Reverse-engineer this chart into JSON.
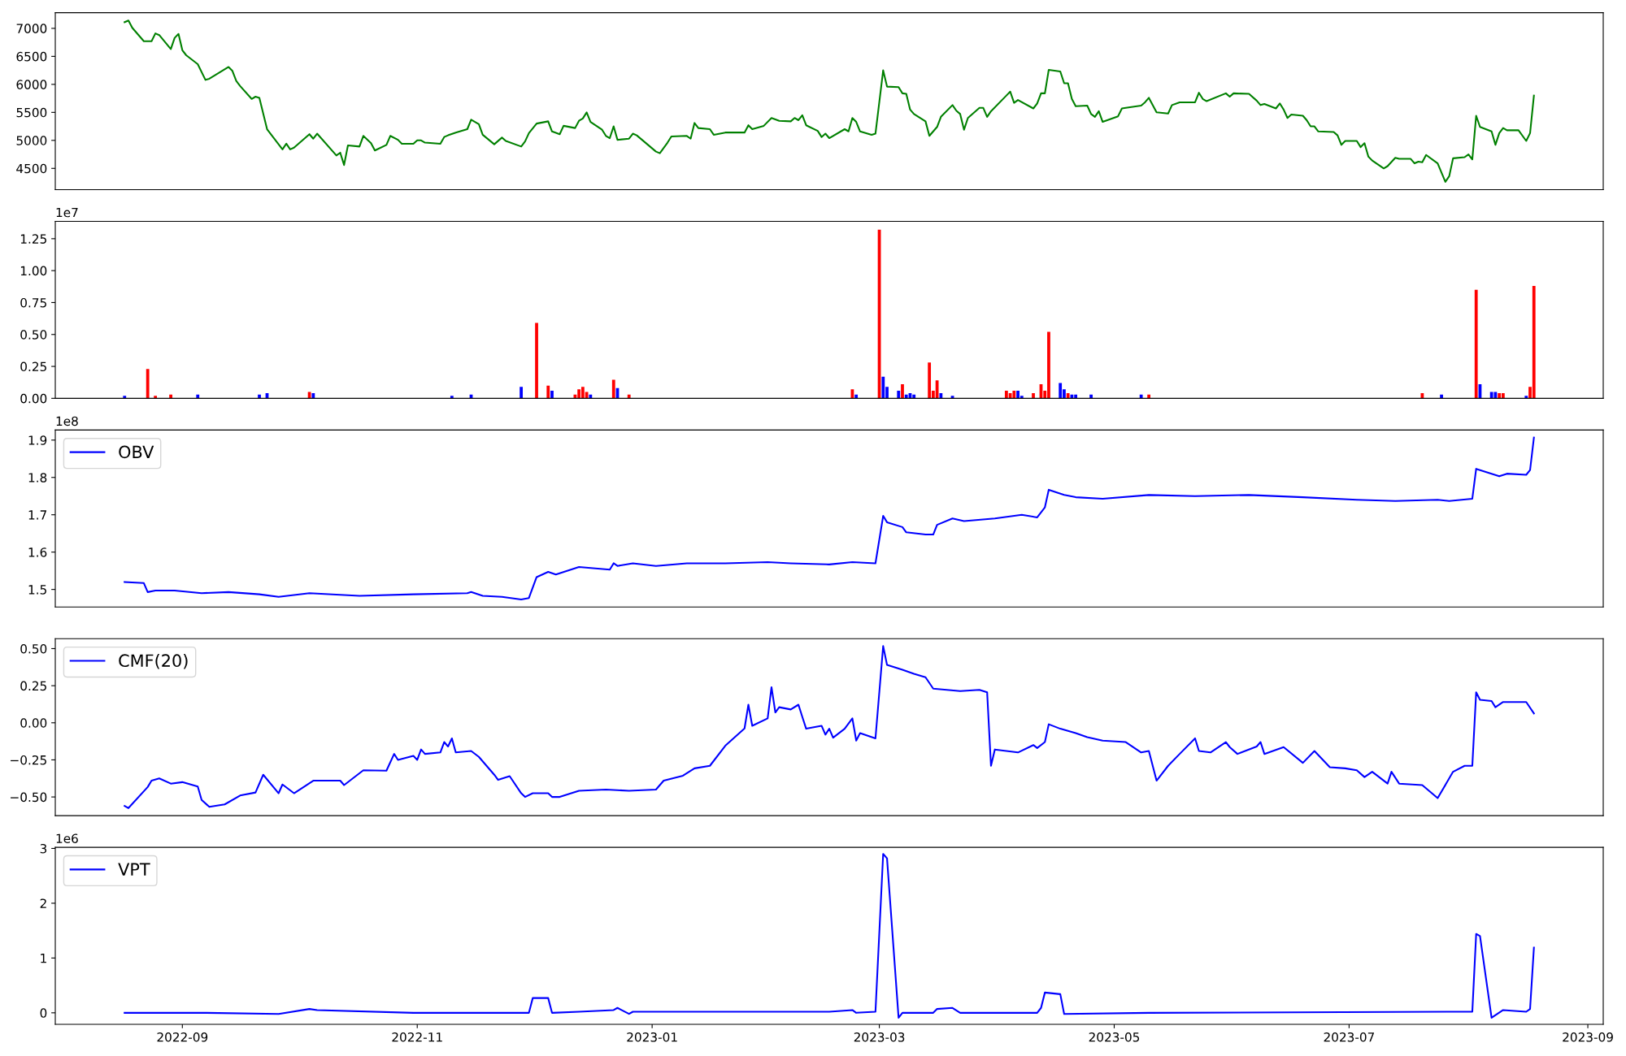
{
  "chart_data": [
    {
      "type": "line",
      "xlim": [
        "2022-07-30",
        "2023-09-05"
      ],
      "ylim": [
        4120,
        7280
      ],
      "yticks": [
        4500,
        5000,
        5500,
        6000,
        6500,
        7000
      ],
      "tick_labels": "y",
      "grid": false,
      "legend": false,
      "series": [
        {
          "color": "#008000",
          "x": [
            "2022-08-17",
            "2022-08-18",
            "2022-08-19",
            "2022-08-22",
            "2022-08-24",
            "2022-08-25",
            "2022-08-26",
            "2022-08-29",
            "2022-08-30",
            "2022-08-31",
            "2022-09-01",
            "2022-09-02",
            "2022-09-05",
            "2022-09-07",
            "2022-09-08",
            "2022-09-13",
            "2022-09-14",
            "2022-09-15",
            "2022-09-16",
            "2022-09-19",
            "2022-09-20",
            "2022-09-21",
            "2022-09-23",
            "2022-09-27",
            "2022-09-28",
            "2022-09-29",
            "2022-09-30",
            "2022-10-04",
            "2022-10-05",
            "2022-10-06",
            "2022-10-11",
            "2022-10-12",
            "2022-10-13",
            "2022-10-14",
            "2022-10-17",
            "2022-10-18",
            "2022-10-20",
            "2022-10-21",
            "2022-10-24",
            "2022-10-25",
            "2022-10-27",
            "2022-10-28",
            "2022-10-31",
            "2022-11-01",
            "2022-11-02",
            "2022-11-03",
            "2022-11-07",
            "2022-11-08",
            "2022-11-09",
            "2022-11-11",
            "2022-11-14",
            "2022-11-15",
            "2022-11-17",
            "2022-11-18",
            "2022-11-21",
            "2022-11-23",
            "2022-11-24",
            "2022-11-28",
            "2022-11-29",
            "2022-11-30",
            "2022-12-02",
            "2022-12-05",
            "2022-12-06",
            "2022-12-08",
            "2022-12-09",
            "2022-12-12",
            "2022-12-13",
            "2022-12-14",
            "2022-12-15",
            "2022-12-16",
            "2022-12-19",
            "2022-12-20",
            "2022-12-21",
            "2022-12-22",
            "2022-12-23",
            "2022-12-26",
            "2022-12-27",
            "2022-12-28",
            "2023-01-02",
            "2023-01-03",
            "2023-01-05",
            "2023-01-06",
            "2023-01-10",
            "2023-01-11",
            "2023-01-12",
            "2023-01-13",
            "2023-01-16",
            "2023-01-17",
            "2023-01-20",
            "2023-01-25",
            "2023-01-26",
            "2023-01-27",
            "2023-01-30",
            "2023-02-01",
            "2023-02-03",
            "2023-02-06",
            "2023-02-07",
            "2023-02-08",
            "2023-02-09",
            "2023-02-10",
            "2023-02-13",
            "2023-02-14",
            "2023-02-15",
            "2023-02-16",
            "2023-02-20",
            "2023-02-21",
            "2023-02-22",
            "2023-02-23",
            "2023-02-24",
            "2023-02-27",
            "2023-02-28",
            "2023-03-02",
            "2023-03-03",
            "2023-03-06",
            "2023-03-07",
            "2023-03-08",
            "2023-03-09",
            "2023-03-10",
            "2023-03-13",
            "2023-03-14",
            "2023-03-16",
            "2023-03-17",
            "2023-03-20",
            "2023-03-21",
            "2023-03-22",
            "2023-03-23",
            "2023-03-24",
            "2023-03-27",
            "2023-03-28",
            "2023-03-29",
            "2023-03-30",
            "2023-04-03",
            "2023-04-04",
            "2023-04-05",
            "2023-04-06",
            "2023-04-10",
            "2023-04-11",
            "2023-04-12",
            "2023-04-13",
            "2023-04-14",
            "2023-04-17",
            "2023-04-18",
            "2023-04-19",
            "2023-04-20",
            "2023-04-21",
            "2023-04-24",
            "2023-04-25",
            "2023-04-26",
            "2023-04-27",
            "2023-04-28",
            "2023-05-02",
            "2023-05-03",
            "2023-05-04",
            "2023-05-08",
            "2023-05-09",
            "2023-05-10",
            "2023-05-12",
            "2023-05-15",
            "2023-05-16",
            "2023-05-18",
            "2023-05-22",
            "2023-05-23",
            "2023-05-24",
            "2023-05-25",
            "2023-05-30",
            "2023-05-31",
            "2023-06-01",
            "2023-06-05",
            "2023-06-07",
            "2023-06-08",
            "2023-06-09",
            "2023-06-12",
            "2023-06-13",
            "2023-06-14",
            "2023-06-15",
            "2023-06-16",
            "2023-06-19",
            "2023-06-20",
            "2023-06-21",
            "2023-06-22",
            "2023-06-23",
            "2023-06-27",
            "2023-06-28",
            "2023-06-29",
            "2023-06-30",
            "2023-07-03",
            "2023-07-04",
            "2023-07-05",
            "2023-07-06",
            "2023-07-07",
            "2023-07-10",
            "2023-07-11",
            "2023-07-13",
            "2023-07-14",
            "2023-07-17",
            "2023-07-18",
            "2023-07-19",
            "2023-07-20",
            "2023-07-21",
            "2023-07-24",
            "2023-07-26",
            "2023-07-27",
            "2023-07-28",
            "2023-07-31",
            "2023-08-01",
            "2023-08-02",
            "2023-08-03",
            "2023-08-04",
            "2023-08-07",
            "2023-08-08",
            "2023-08-09",
            "2023-08-10",
            "2023-08-11",
            "2023-08-14",
            "2023-08-16",
            "2023-08-17",
            "2023-08-18"
          ],
          "values": [
            7110,
            7140,
            7010,
            6770,
            6770,
            6910,
            6880,
            6630,
            6830,
            6900,
            6610,
            6520,
            6360,
            6080,
            6100,
            6310,
            6240,
            6060,
            5970,
            5740,
            5780,
            5760,
            5200,
            4840,
            4940,
            4840,
            4870,
            5110,
            5030,
            5120,
            4730,
            4780,
            4560,
            4910,
            4890,
            5080,
            4950,
            4820,
            4920,
            5080,
            5010,
            4940,
            4940,
            5000,
            5000,
            4960,
            4940,
            5060,
            5090,
            5140,
            5200,
            5370,
            5290,
            5100,
            4930,
            5050,
            4990,
            4890,
            4980,
            5130,
            5300,
            5340,
            5160,
            5110,
            5260,
            5220,
            5350,
            5390,
            5500,
            5330,
            5190,
            5080,
            5040,
            5250,
            5010,
            5030,
            5120,
            5090,
            4800,
            4770,
            4960,
            5070,
            5080,
            5030,
            5310,
            5220,
            5200,
            5100,
            5140,
            5140,
            5270,
            5200,
            5260,
            5400,
            5350,
            5340,
            5400,
            5360,
            5450,
            5270,
            5170,
            5060,
            5120,
            5040,
            5200,
            5160,
            5400,
            5330,
            5160,
            5100,
            5120,
            6250,
            5960,
            5950,
            5840,
            5830,
            5550,
            5470,
            5340,
            5080,
            5240,
            5420,
            5630,
            5530,
            5470,
            5190,
            5400,
            5580,
            5580,
            5420,
            5520,
            5800,
            5870,
            5670,
            5720,
            5570,
            5660,
            5840,
            5840,
            6260,
            6230,
            6020,
            6020,
            5740,
            5610,
            5620,
            5470,
            5420,
            5520,
            5330,
            5430,
            5570,
            5580,
            5620,
            5680,
            5760,
            5500,
            5480,
            5630,
            5680,
            5680,
            5850,
            5740,
            5700,
            5840,
            5780,
            5840,
            5830,
            5710,
            5630,
            5650,
            5570,
            5660,
            5550,
            5400,
            5460,
            5440,
            5360,
            5250,
            5250,
            5160,
            5150,
            5090,
            4920,
            4990,
            4990,
            4880,
            4950,
            4710,
            4640,
            4500,
            4540,
            4690,
            4670,
            4670,
            4590,
            4620,
            4610,
            4740,
            4590,
            4260,
            4360,
            4680,
            4700,
            4750,
            4660,
            5440,
            5240,
            5160,
            4920,
            5130,
            5220,
            5180,
            5180,
            4990,
            5130,
            5800
          ]
        }
      ]
    },
    {
      "type": "bar",
      "xlim": [
        "2022-07-30",
        "2023-09-05"
      ],
      "ylim": [
        0,
        1.386
      ],
      "yticks": [
        {
          "value": 0,
          "label": "0.00"
        },
        0.25,
        {
          "value": 0.5,
          "label": "0.50"
        },
        {
          "value": 0.75,
          "label": "0.75"
        },
        {
          "value": 1.0,
          "label": "1.00"
        },
        1.25
      ],
      "tick_labels": "y",
      "grid": false,
      "legend": false,
      "annotations": [
        "1e7"
      ],
      "x": [
        "2022-08-17",
        "2022-08-23",
        "2022-08-25",
        "2022-08-29",
        "2022-09-05",
        "2022-09-21",
        "2022-09-23",
        "2022-10-04",
        "2022-10-05",
        "2022-11-10",
        "2022-11-15",
        "2022-11-28",
        "2022-12-02",
        "2022-12-05",
        "2022-12-06",
        "2022-12-12",
        "2022-12-13",
        "2022-12-14",
        "2022-12-15",
        "2022-12-16",
        "2022-12-22",
        "2022-12-23",
        "2022-12-26",
        "2023-02-22",
        "2023-02-23",
        "2023-03-01",
        "2023-03-02",
        "2023-03-03",
        "2023-03-06",
        "2023-03-07",
        "2023-03-08",
        "2023-03-09",
        "2023-03-10",
        "2023-03-14",
        "2023-03-15",
        "2023-03-16",
        "2023-03-17",
        "2023-03-20",
        "2023-04-03",
        "2023-04-04",
        "2023-04-05",
        "2023-04-06",
        "2023-04-07",
        "2023-04-10",
        "2023-04-12",
        "2023-04-13",
        "2023-04-14",
        "2023-04-17",
        "2023-04-18",
        "2023-04-19",
        "2023-04-20",
        "2023-04-21",
        "2023-04-25",
        "2023-05-08",
        "2023-05-10",
        "2023-07-20",
        "2023-07-25",
        "2023-08-03",
        "2023-08-04",
        "2023-08-07",
        "2023-08-08",
        "2023-08-09",
        "2023-08-10",
        "2023-08-16",
        "2023-08-17",
        "2023-08-18"
      ],
      "values": [
        0.02,
        0.23,
        0.02,
        0.03,
        0.03,
        0.03,
        0.04,
        0.05,
        0.04,
        0.02,
        0.03,
        0.09,
        0.59,
        0.1,
        0.06,
        0.03,
        0.07,
        0.09,
        0.05,
        0.03,
        0.145,
        0.08,
        0.03,
        0.07,
        0.03,
        1.32,
        0.17,
        0.09,
        0.06,
        0.11,
        0.03,
        0.04,
        0.03,
        0.28,
        0.06,
        0.14,
        0.04,
        0.02,
        0.06,
        0.04,
        0.06,
        0.06,
        0.02,
        0.04,
        0.11,
        0.06,
        0.52,
        0.12,
        0.07,
        0.04,
        0.03,
        0.03,
        0.03,
        0.03,
        0.03,
        0.04,
        0.03,
        0.85,
        0.11,
        0.05,
        0.05,
        0.04,
        0.04,
        0.02,
        0.09,
        0.88
      ],
      "colors": [
        "#0000ff",
        "#ff0000",
        "#ff0000",
        "#ff0000",
        "#0000ff",
        "#0000ff",
        "#0000ff",
        "#ff0000",
        "#0000ff",
        "#0000ff",
        "#0000ff",
        "#0000ff",
        "#ff0000",
        "#ff0000",
        "#0000ff",
        "#ff0000",
        "#ff0000",
        "#ff0000",
        "#ff0000",
        "#0000ff",
        "#ff0000",
        "#0000ff",
        "#ff0000",
        "#ff0000",
        "#0000ff",
        "#ff0000",
        "#0000ff",
        "#0000ff",
        "#0000ff",
        "#ff0000",
        "#0000ff",
        "#0000ff",
        "#0000ff",
        "#ff0000",
        "#ff0000",
        "#ff0000",
        "#0000ff",
        "#0000ff",
        "#ff0000",
        "#ff0000",
        "#ff0000",
        "#0000ff",
        "#0000ff",
        "#ff0000",
        "#ff0000",
        "#ff0000",
        "#ff0000",
        "#0000ff",
        "#0000ff",
        "#ff0000",
        "#0000ff",
        "#0000ff",
        "#0000ff",
        "#0000ff",
        "#ff0000",
        "#ff0000",
        "#0000ff",
        "#ff0000",
        "#0000ff",
        "#0000ff",
        "#0000ff",
        "#ff0000",
        "#ff0000",
        "#0000ff",
        "#ff0000",
        "#ff0000"
      ]
    },
    {
      "type": "line",
      "xlim": [
        "2022-07-30",
        "2023-09-05"
      ],
      "ylim": [
        1.453,
        1.927
      ],
      "yticks": [
        1.5,
        1.6,
        1.7,
        1.8,
        1.9
      ],
      "tick_labels": "y",
      "grid": false,
      "legend": "top left",
      "annotations": [
        "1e8"
      ],
      "series": [
        {
          "name": "OBV",
          "color": "#0000ff",
          "x": [
            "2022-08-17",
            "2022-08-22",
            "2022-08-23",
            "2022-08-25",
            "2022-08-30",
            "2022-09-06",
            "2022-09-13",
            "2022-09-21",
            "2022-09-26",
            "2022-10-04",
            "2022-10-17",
            "2022-10-31",
            "2022-11-14",
            "2022-11-15",
            "2022-11-18",
            "2022-11-23",
            "2022-11-28",
            "2022-11-30",
            "2022-12-02",
            "2022-12-05",
            "2022-12-07",
            "2022-12-13",
            "2022-12-21",
            "2022-12-22",
            "2022-12-23",
            "2022-12-27",
            "2023-01-02",
            "2023-01-10",
            "2023-01-20",
            "2023-01-31",
            "2023-02-06",
            "2023-02-16",
            "2023-02-22",
            "2023-02-28",
            "2023-03-02",
            "2023-03-03",
            "2023-03-07",
            "2023-03-08",
            "2023-03-13",
            "2023-03-15",
            "2023-03-16",
            "2023-03-20",
            "2023-03-23",
            "2023-03-31",
            "2023-04-07",
            "2023-04-11",
            "2023-04-13",
            "2023-04-14",
            "2023-04-18",
            "2023-04-21",
            "2023-04-28",
            "2023-05-10",
            "2023-05-22",
            "2023-06-05",
            "2023-06-19",
            "2023-07-03",
            "2023-07-13",
            "2023-07-24",
            "2023-07-27",
            "2023-08-02",
            "2023-08-03",
            "2023-08-07",
            "2023-08-09",
            "2023-08-11",
            "2023-08-16",
            "2023-08-17",
            "2023-08-18"
          ],
          "values": [
            1.52,
            1.517,
            1.493,
            1.497,
            1.497,
            1.49,
            1.493,
            1.487,
            1.48,
            1.49,
            1.483,
            1.487,
            1.49,
            1.493,
            1.483,
            1.48,
            1.473,
            1.477,
            1.533,
            1.547,
            1.54,
            1.56,
            1.553,
            1.57,
            1.563,
            1.57,
            1.563,
            1.57,
            1.57,
            1.573,
            1.57,
            1.567,
            1.573,
            1.57,
            1.697,
            1.68,
            1.667,
            1.653,
            1.647,
            1.647,
            1.673,
            1.69,
            1.683,
            1.69,
            1.7,
            1.693,
            1.72,
            1.767,
            1.753,
            1.747,
            1.743,
            1.753,
            1.75,
            1.753,
            1.747,
            1.74,
            1.737,
            1.74,
            1.737,
            1.743,
            1.823,
            1.81,
            1.803,
            1.81,
            1.807,
            1.82,
            1.907
          ]
        }
      ]
    },
    {
      "type": "line",
      "xlim": [
        "2022-07-30",
        "2023-09-05"
      ],
      "ylim": [
        -0.626,
        0.567
      ],
      "yticks": [
        {
          "value": -0.5,
          "label": "−0.50"
        },
        {
          "value": -0.25,
          "label": "−0.25"
        },
        {
          "value": 0,
          "label": "0.00"
        },
        0.25,
        {
          "value": 0.5,
          "label": "0.50"
        }
      ],
      "tick_labels": "y",
      "grid": false,
      "legend": "top left",
      "series": [
        {
          "name": "CMF(20)",
          "color": "#0000ff",
          "x": [
            "2022-08-17",
            "2022-08-18",
            "2022-08-23",
            "2022-08-24",
            "2022-08-26",
            "2022-08-29",
            "2022-09-01",
            "2022-09-05",
            "2022-09-06",
            "2022-09-08",
            "2022-09-12",
            "2022-09-16",
            "2022-09-20",
            "2022-09-22",
            "2022-09-26",
            "2022-09-27",
            "2022-09-30",
            "2022-10-05",
            "2022-10-12",
            "2022-10-13",
            "2022-10-18",
            "2022-10-24",
            "2022-10-26",
            "2022-10-27",
            "2022-10-31",
            "2022-11-01",
            "2022-11-02",
            "2022-11-03",
            "2022-11-07",
            "2022-11-08",
            "2022-11-09",
            "2022-11-10",
            "2022-11-11",
            "2022-11-15",
            "2022-11-17",
            "2022-11-21",
            "2022-11-22",
            "2022-11-25",
            "2022-11-28",
            "2022-11-29",
            "2022-12-01",
            "2022-12-05",
            "2022-12-06",
            "2022-12-08",
            "2022-12-13",
            "2022-12-20",
            "2022-12-26",
            "2023-01-02",
            "2023-01-04",
            "2023-01-09",
            "2023-01-12",
            "2023-01-16",
            "2023-01-20",
            "2023-01-25",
            "2023-01-26",
            "2023-01-27",
            "2023-01-31",
            "2023-02-01",
            "2023-02-02",
            "2023-02-03",
            "2023-02-06",
            "2023-02-08",
            "2023-02-09",
            "2023-02-10",
            "2023-02-14",
            "2023-02-15",
            "2023-02-16",
            "2023-02-17",
            "2023-02-20",
            "2023-02-22",
            "2023-02-23",
            "2023-02-24",
            "2023-02-28",
            "2023-03-02",
            "2023-03-03",
            "2023-03-07",
            "2023-03-10",
            "2023-03-13",
            "2023-03-15",
            "2023-03-22",
            "2023-03-27",
            "2023-03-29",
            "2023-03-30",
            "2023-03-31",
            "2023-04-06",
            "2023-04-10",
            "2023-04-11",
            "2023-04-13",
            "2023-04-14",
            "2023-04-17",
            "2023-04-21",
            "2023-04-24",
            "2023-04-28",
            "2023-05-04",
            "2023-05-08",
            "2023-05-10",
            "2023-05-12",
            "2023-05-15",
            "2023-05-18",
            "2023-05-22",
            "2023-05-23",
            "2023-05-26",
            "2023-05-30",
            "2023-05-31",
            "2023-06-02",
            "2023-06-07",
            "2023-06-08",
            "2023-06-09",
            "2023-06-14",
            "2023-06-19",
            "2023-06-22",
            "2023-06-26",
            "2023-06-30",
            "2023-07-03",
            "2023-07-05",
            "2023-07-07",
            "2023-07-11",
            "2023-07-12",
            "2023-07-14",
            "2023-07-20",
            "2023-07-24",
            "2023-07-28",
            "2023-07-31",
            "2023-08-02",
            "2023-08-03",
            "2023-08-04",
            "2023-08-07",
            "2023-08-08",
            "2023-08-10",
            "2023-08-16",
            "2023-08-18"
          ],
          "values": [
            -0.56,
            -0.575,
            -0.433,
            -0.39,
            -0.375,
            -0.41,
            -0.4,
            -0.43,
            -0.52,
            -0.567,
            -0.55,
            -0.49,
            -0.47,
            -0.35,
            -0.475,
            -0.416,
            -0.475,
            -0.39,
            -0.39,
            -0.42,
            -0.32,
            -0.323,
            -0.21,
            -0.25,
            -0.223,
            -0.25,
            -0.18,
            -0.21,
            -0.2,
            -0.13,
            -0.16,
            -0.105,
            -0.2,
            -0.19,
            -0.23,
            -0.35,
            -0.385,
            -0.36,
            -0.475,
            -0.5,
            -0.475,
            -0.475,
            -0.5,
            -0.5,
            -0.458,
            -0.45,
            -0.458,
            -0.45,
            -0.39,
            -0.357,
            -0.307,
            -0.29,
            -0.155,
            -0.038,
            0.122,
            -0.02,
            0.03,
            0.24,
            0.07,
            0.105,
            0.09,
            0.122,
            0.04,
            -0.04,
            -0.02,
            -0.08,
            -0.04,
            -0.1,
            -0.04,
            0.03,
            -0.12,
            -0.07,
            -0.105,
            0.517,
            0.39,
            0.357,
            0.33,
            0.307,
            0.23,
            0.214,
            0.222,
            0.205,
            -0.29,
            -0.18,
            -0.2,
            -0.15,
            -0.17,
            -0.13,
            -0.01,
            -0.04,
            -0.07,
            -0.097,
            -0.12,
            -0.13,
            -0.2,
            -0.19,
            -0.39,
            -0.29,
            -0.21,
            -0.105,
            -0.19,
            -0.2,
            -0.13,
            -0.164,
            -0.21,
            -0.16,
            -0.13,
            -0.21,
            -0.164,
            -0.27,
            -0.19,
            -0.3,
            -0.307,
            -0.32,
            -0.366,
            -0.33,
            -0.41,
            -0.33,
            -0.41,
            -0.42,
            -0.508,
            -0.33,
            -0.29,
            -0.29,
            0.206,
            0.155,
            0.147,
            0.105,
            0.14,
            0.14,
            0.063
          ]
        }
      ]
    },
    {
      "type": "line",
      "xlim": [
        "2022-07-30",
        "2023-09-05"
      ],
      "ylim": [
        -0.21,
        3.02
      ],
      "yticks": [
        0,
        1,
        2,
        3
      ],
      "xticks": [
        "2022-09",
        "2022-11",
        "2023-01",
        "2023-03",
        "2023-05",
        "2023-07",
        "2023-09"
      ],
      "grid": false,
      "legend": "top left",
      "annotations": [
        "1e6"
      ],
      "series": [
        {
          "name": "VPT",
          "color": "#0000ff",
          "x": [
            "2022-08-17",
            "2022-08-25",
            "2022-09-07",
            "2022-09-26",
            "2022-10-04",
            "2022-10-06",
            "2022-10-31",
            "2022-11-28",
            "2022-11-30",
            "2022-12-01",
            "2022-12-05",
            "2022-12-06",
            "2022-12-13",
            "2022-12-22",
            "2022-12-23",
            "2022-12-26",
            "2022-12-27",
            "2023-02-16",
            "2023-02-22",
            "2023-02-23",
            "2023-02-28",
            "2023-03-02",
            "2023-03-03",
            "2023-03-06",
            "2023-03-07",
            "2023-03-15",
            "2023-03-16",
            "2023-03-20",
            "2023-03-22",
            "2023-04-11",
            "2023-04-12",
            "2023-04-13",
            "2023-04-17",
            "2023-04-18",
            "2023-05-10",
            "2023-07-28",
            "2023-08-02",
            "2023-08-03",
            "2023-08-04",
            "2023-08-07",
            "2023-08-10",
            "2023-08-16",
            "2023-08-17",
            "2023-08-18"
          ],
          "values": [
            0,
            0,
            0,
            -0.02,
            0.07,
            0.05,
            0,
            0,
            0,
            0.27,
            0.27,
            0,
            0.02,
            0.05,
            0.09,
            -0.02,
            0.02,
            0.02,
            0.05,
            0,
            0.02,
            2.9,
            2.82,
            -0.09,
            0,
            0,
            0.07,
            0.09,
            0,
            0,
            0.09,
            0.37,
            0.34,
            -0.02,
            0,
            0.02,
            0.02,
            1.44,
            1.4,
            -0.09,
            0.05,
            0.02,
            0.07,
            1.19
          ]
        }
      ]
    }
  ]
}
